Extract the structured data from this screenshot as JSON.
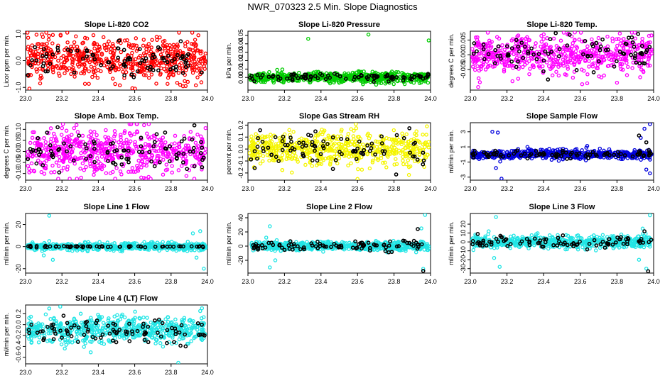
{
  "title": "NWR_070323  2.5 Min. Slope Diagnostics",
  "chart_data": [
    {
      "type": "scatter",
      "title": "Slope Li-820 CO2",
      "ylabel": "Licor ppm per min.",
      "xlim": [
        23.0,
        24.0
      ],
      "ylim": [
        -1.1,
        1.1
      ],
      "xticks": [
        "23.0",
        "23.2",
        "23.4",
        "23.6",
        "23.8",
        "24.0"
      ],
      "yticks": [
        {
          "v": -1,
          "label": "-1.0"
        },
        {
          "v": 0,
          "label": "0.0"
        },
        {
          "v": 1,
          "label": "1.0"
        }
      ],
      "color": "#ff0000",
      "series": [
        {
          "name": "all",
          "color": "#ff0000",
          "n": 600,
          "center": 0.05,
          "spread": 0.38,
          "outliers": [
            [
              23.06,
              0.97
            ],
            [
              23.09,
              0.98
            ],
            [
              23.15,
              0.96
            ],
            [
              23.08,
              -0.85
            ],
            [
              23.27,
              -0.6
            ],
            [
              23.85,
              -0.9
            ],
            [
              23.88,
              -0.95
            ],
            [
              23.95,
              0.95
            ]
          ]
        },
        {
          "name": "selected",
          "color": "#000000",
          "n": 90,
          "center": 0.0,
          "spread": 0.3,
          "outliers": []
        }
      ]
    },
    {
      "type": "scatter",
      "title": "Slope Li-820 Pressure",
      "ylabel": "kPa per min.",
      "xlim": [
        23.0,
        24.0
      ],
      "ylim": [
        -0.015,
        0.055
      ],
      "xticks": [
        "23.0",
        "23.2",
        "23.4",
        "23.6",
        "23.8",
        "24.0"
      ],
      "yticks": [
        {
          "v": 0,
          "label": "0.00"
        },
        {
          "v": 0.01,
          "label": "0.01"
        },
        {
          "v": 0.02,
          "label": "0.02"
        },
        {
          "v": 0.03,
          "label": "0.03"
        },
        {
          "v": 0.04,
          "label": "0.04"
        },
        {
          "v": 0.05,
          "label": "0.05"
        }
      ],
      "color": "#00cc00",
      "series": [
        {
          "name": "all",
          "color": "#00cc00",
          "n": 600,
          "center": 0.0,
          "spread": 0.003,
          "outliers": [
            [
              23.33,
              0.046
            ],
            [
              23.66,
              0.051
            ],
            [
              23.99,
              0.044
            ],
            [
              23.16,
              0.009
            ],
            [
              23.63,
              -0.008
            ],
            [
              23.45,
              -0.007
            ]
          ]
        },
        {
          "name": "selected",
          "color": "#000000",
          "n": 90,
          "center": 0.0,
          "spread": 0.002,
          "outliers": []
        }
      ]
    },
    {
      "type": "scatter",
      "title": "Slope Li-820 Temp.",
      "ylabel": "degrees C per min.",
      "xlim": [
        23.0,
        24.0
      ],
      "ylim": [
        -0.012,
        0.008
      ],
      "xticks": [
        "23.0",
        "23.2",
        "23.4",
        "23.6",
        "23.8",
        "24.0"
      ],
      "yticks": [
        {
          "v": -0.005,
          "label": "-0.005"
        },
        {
          "v": 0,
          "label": "0.000"
        },
        {
          "v": 0.005,
          "label": "0.005"
        }
      ],
      "color": "#ff00ff",
      "series": [
        {
          "name": "all",
          "color": "#ff00ff",
          "n": 600,
          "center": 0.0,
          "spread": 0.0033,
          "outliers": [
            [
              23.57,
              0.0076
            ],
            [
              23.23,
              -0.009
            ],
            [
              23.61,
              -0.01
            ],
            [
              23.8,
              -0.0095
            ]
          ]
        },
        {
          "name": "selected",
          "color": "#000000",
          "n": 90,
          "center": 0.0,
          "spread": 0.0028,
          "outliers": []
        }
      ]
    },
    {
      "type": "scatter",
      "title": "Slope Amb. Box Temp.",
      "ylabel": "degrees C per min.",
      "xlim": [
        23.0,
        24.0
      ],
      "ylim": [
        -0.13,
        0.13
      ],
      "xticks": [
        "23.0",
        "23.2",
        "23.4",
        "23.6",
        "23.8",
        "24.0"
      ],
      "yticks": [
        {
          "v": -0.1,
          "label": "-0.10"
        },
        {
          "v": -0.05,
          "label": "-0.05"
        },
        {
          "v": 0,
          "label": "0.00"
        },
        {
          "v": 0.05,
          "label": "0.05"
        },
        {
          "v": 0.1,
          "label": "0.10"
        }
      ],
      "color": "#ff00ff",
      "series": [
        {
          "name": "all",
          "color": "#ff00ff",
          "n": 600,
          "center": 0.0,
          "spread": 0.05,
          "outliers": []
        },
        {
          "name": "selected",
          "color": "#000000",
          "n": 90,
          "center": 0.0,
          "spread": 0.045,
          "outliers": []
        }
      ]
    },
    {
      "type": "scatter",
      "title": "Slope Gas Stream RH",
      "ylabel": "percent per min.",
      "xlim": [
        23.0,
        24.0
      ],
      "ylim": [
        -0.26,
        0.22
      ],
      "xticks": [
        "23.0",
        "23.2",
        "23.4",
        "23.6",
        "23.8",
        "24.0"
      ],
      "yticks": [
        {
          "v": -0.2,
          "label": "-0.2"
        },
        {
          "v": -0.1,
          "label": "-0.1"
        },
        {
          "v": 0,
          "label": "0.0"
        },
        {
          "v": 0.1,
          "label": "0.1"
        },
        {
          "v": 0.2,
          "label": "0.2"
        }
      ],
      "color": "#ffff00",
      "series": [
        {
          "name": "all",
          "color": "#f5f500",
          "n": 600,
          "center": 0.0,
          "spread": 0.07,
          "outliers": [
            [
              23.6,
              -0.25
            ],
            [
              23.98,
              0.19
            ]
          ]
        },
        {
          "name": "selected",
          "color": "#000000",
          "n": 90,
          "center": 0.0,
          "spread": 0.07,
          "outliers": []
        }
      ]
    },
    {
      "type": "scatter",
      "title": "Slope Sample Flow",
      "ylabel": "ml/min per min.",
      "xlim": [
        23.0,
        24.0
      ],
      "ylim": [
        -3.4,
        4.2
      ],
      "xticks": [
        "23.0",
        "23.2",
        "23.4",
        "23.6",
        "23.8",
        "24.0"
      ],
      "yticks": [
        {
          "v": -3,
          "label": "-3"
        },
        {
          "v": -1,
          "label": "-1"
        },
        {
          "v": 1,
          "label": "1"
        },
        {
          "v": 3,
          "label": "3"
        }
      ],
      "color": "#0000ff",
      "series": [
        {
          "name": "all",
          "color": "#0000dd",
          "n": 600,
          "center": 0.0,
          "spread": 0.3,
          "outliers": [
            [
              23.12,
              3.0
            ],
            [
              23.15,
              2.9
            ],
            [
              23.14,
              -1.8
            ],
            [
              23.17,
              -3.2
            ],
            [
              23.95,
              3.4
            ],
            [
              23.98,
              4.0
            ],
            [
              23.96,
              -2.0
            ],
            [
              23.98,
              -2.5
            ],
            [
              23.93,
              2.2
            ]
          ]
        },
        {
          "name": "selected",
          "color": "#000000",
          "n": 90,
          "center": 0.0,
          "spread": 0.25,
          "outliers": [
            [
              23.92,
              2.5
            ],
            [
              23.96,
              1.6
            ]
          ]
        }
      ]
    },
    {
      "type": "scatter",
      "title": "Slope Line 1 Flow",
      "ylabel": "ml/min per min.",
      "xlim": [
        23.0,
        24.0
      ],
      "ylim": [
        -24,
        30
      ],
      "xticks": [
        "23.0",
        "23.2",
        "23.4",
        "23.6",
        "23.8",
        "24.0"
      ],
      "yticks": [
        {
          "v": -20,
          "label": "-20"
        },
        {
          "v": 0,
          "label": "0"
        },
        {
          "v": 20,
          "label": "20"
        }
      ],
      "color": "#00ffff",
      "series": [
        {
          "name": "all",
          "color": "#22e5e5",
          "n": 600,
          "center": 0.0,
          "spread": 1.6,
          "outliers": [
            [
              23.13,
              28
            ],
            [
              23.13,
              5
            ],
            [
              23.1,
              -8
            ],
            [
              23.15,
              -12
            ],
            [
              23.92,
              12
            ],
            [
              23.96,
              14
            ],
            [
              23.98,
              -20
            ],
            [
              23.94,
              -10
            ]
          ]
        },
        {
          "name": "selected",
          "color": "#000000",
          "n": 60,
          "center": 0.0,
          "spread": 0.3,
          "outliers": []
        }
      ]
    },
    {
      "type": "scatter",
      "title": "Slope Line 2 Flow",
      "ylabel": "ml/min per min.",
      "xlim": [
        23.0,
        24.0
      ],
      "ylim": [
        -38,
        46
      ],
      "xticks": [
        "23.0",
        "23.2",
        "23.4",
        "23.6",
        "23.8",
        "24.0"
      ],
      "yticks": [
        {
          "v": -20,
          "label": "-20"
        },
        {
          "v": 0,
          "label": "0"
        },
        {
          "v": 20,
          "label": "20"
        },
        {
          "v": 40,
          "label": "40"
        }
      ],
      "color": "#00ffff",
      "series": [
        {
          "name": "all",
          "color": "#22e5e5",
          "n": 600,
          "center": 0.0,
          "spread": 3.0,
          "outliers": [
            [
              23.12,
              28
            ],
            [
              23.1,
              12
            ],
            [
              23.12,
              -30
            ],
            [
              23.15,
              -20
            ],
            [
              23.97,
              44
            ],
            [
              23.95,
              25
            ],
            [
              23.96,
              -32
            ]
          ]
        },
        {
          "name": "selected",
          "color": "#000000",
          "n": 90,
          "center": 0.0,
          "spread": 3.5,
          "outliers": [
            [
              23.93,
              24
            ],
            [
              23.96,
              -35
            ]
          ]
        }
      ]
    },
    {
      "type": "scatter",
      "title": "Slope Line 3 Flow",
      "ylabel": "ml/min per min.",
      "xlim": [
        23.0,
        24.0
      ],
      "ylim": [
        -35,
        32
      ],
      "xticks": [
        "23.0",
        "23.2",
        "23.4",
        "23.6",
        "23.8",
        "24.0"
      ],
      "yticks": [
        {
          "v": -30,
          "label": "-30"
        },
        {
          "v": -20,
          "label": "-20"
        },
        {
          "v": -10,
          "label": "-10"
        },
        {
          "v": 0,
          "label": "0"
        },
        {
          "v": 10,
          "label": "10"
        },
        {
          "v": 20,
          "label": "20"
        }
      ],
      "color": "#00ffff",
      "series": [
        {
          "name": "all",
          "color": "#22e5e5",
          "n": 600,
          "center": 0.0,
          "spread": 3.5,
          "outliers": [
            [
              23.14,
              28
            ],
            [
              23.1,
              12
            ],
            [
              23.13,
              -18
            ],
            [
              23.16,
              -28
            ],
            [
              23.98,
              30
            ],
            [
              23.94,
              15
            ],
            [
              23.96,
              -30
            ],
            [
              23.92,
              -20
            ]
          ]
        },
        {
          "name": "selected",
          "color": "#000000",
          "n": 90,
          "center": 0.0,
          "spread": 3.0,
          "outliers": [
            [
              23.97,
              -33
            ],
            [
              23.95,
              12
            ]
          ]
        }
      ]
    },
    {
      "type": "scatter",
      "title": "Slope Line 4 (LT) Flow",
      "ylabel": "ml/min per min.",
      "xlim": [
        23.0,
        24.0
      ],
      "ylim": [
        -0.72,
        0.36
      ],
      "xticks": [
        "23.0",
        "23.2",
        "23.4",
        "23.6",
        "23.8",
        "24.0"
      ],
      "yticks": [
        {
          "v": -0.6,
          "label": "-0.6"
        },
        {
          "v": -0.4,
          "label": "-0.4"
        },
        {
          "v": -0.2,
          "label": "-0.2"
        },
        {
          "v": 0,
          "label": "0.0"
        },
        {
          "v": 0.2,
          "label": "0.2"
        }
      ],
      "color": "#00ffff",
      "series": [
        {
          "name": "all",
          "color": "#22e5e5",
          "n": 600,
          "center": -0.1,
          "spread": 0.12,
          "outliers": [
            [
              23.84,
              -0.7
            ],
            [
              23.97,
              0.3
            ],
            [
              23.96,
              0.25
            ]
          ]
        },
        {
          "name": "selected",
          "color": "#000000",
          "n": 90,
          "center": -0.12,
          "spread": 0.11,
          "outliers": [
            [
              23.88,
              -0.4
            ]
          ]
        }
      ]
    }
  ]
}
